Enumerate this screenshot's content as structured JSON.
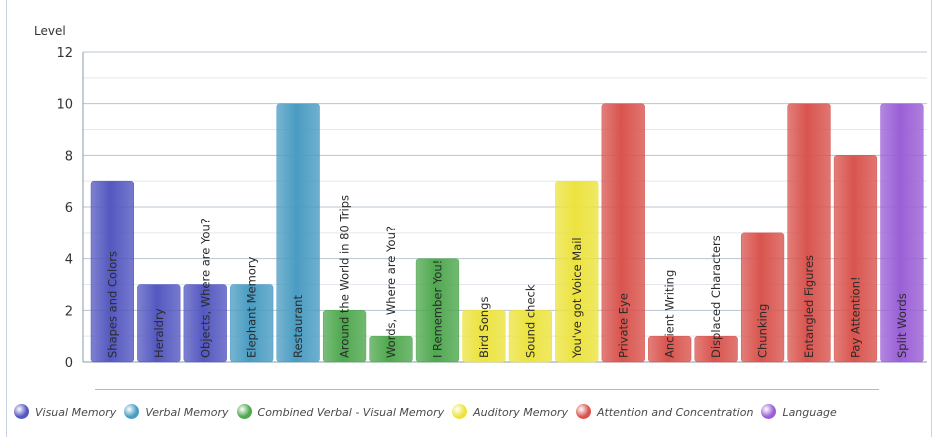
{
  "chart_data": {
    "type": "bar",
    "ylabel": "Level",
    "ylim": [
      0,
      12
    ],
    "yticks": [
      0,
      2,
      4,
      6,
      8,
      10,
      12
    ],
    "categories": [
      "Shapes and Colors",
      "Heraldry",
      "Objects, Where are You?",
      "Elephant Memory",
      "Restaurant",
      "Around the World in 80 Trips",
      "Words, Where are You?",
      "I Remember You!",
      "Bird Songs",
      "Sound check",
      "You've got Voice Mail",
      "Private Eye",
      "Ancient Writing",
      "Displaced Characters",
      "Chunking",
      "Entangled Figures",
      "Pay Attention!",
      "Split Words"
    ],
    "values": [
      7,
      3,
      3,
      3,
      10,
      2,
      1,
      4,
      2,
      2,
      7,
      10,
      1,
      1,
      5,
      10,
      8,
      10
    ],
    "groups": [
      "Visual Memory",
      "Visual Memory",
      "Visual Memory",
      "Verbal Memory",
      "Verbal Memory",
      "Combined Verbal - Visual Memory",
      "Combined Verbal - Visual Memory",
      "Combined Verbal - Visual Memory",
      "Auditory Memory",
      "Auditory Memory",
      "Auditory Memory",
      "Attention and Concentration",
      "Attention and Concentration",
      "Attention and Concentration",
      "Attention and Concentration",
      "Attention and Concentration",
      "Attention and Concentration",
      "Language"
    ],
    "series": [
      {
        "name": "Visual Memory",
        "color": "#5458c0"
      },
      {
        "name": "Verbal Memory",
        "color": "#4a9cc2"
      },
      {
        "name": "Combined Verbal - Visual Memory",
        "color": "#4fa84f"
      },
      {
        "name": "Auditory Memory",
        "color": "#ece33e"
      },
      {
        "name": "Attention and Concentration",
        "color": "#d9544e"
      },
      {
        "name": "Language",
        "color": "#9a5fd6"
      }
    ],
    "grid": true,
    "legend_position": "bottom"
  }
}
